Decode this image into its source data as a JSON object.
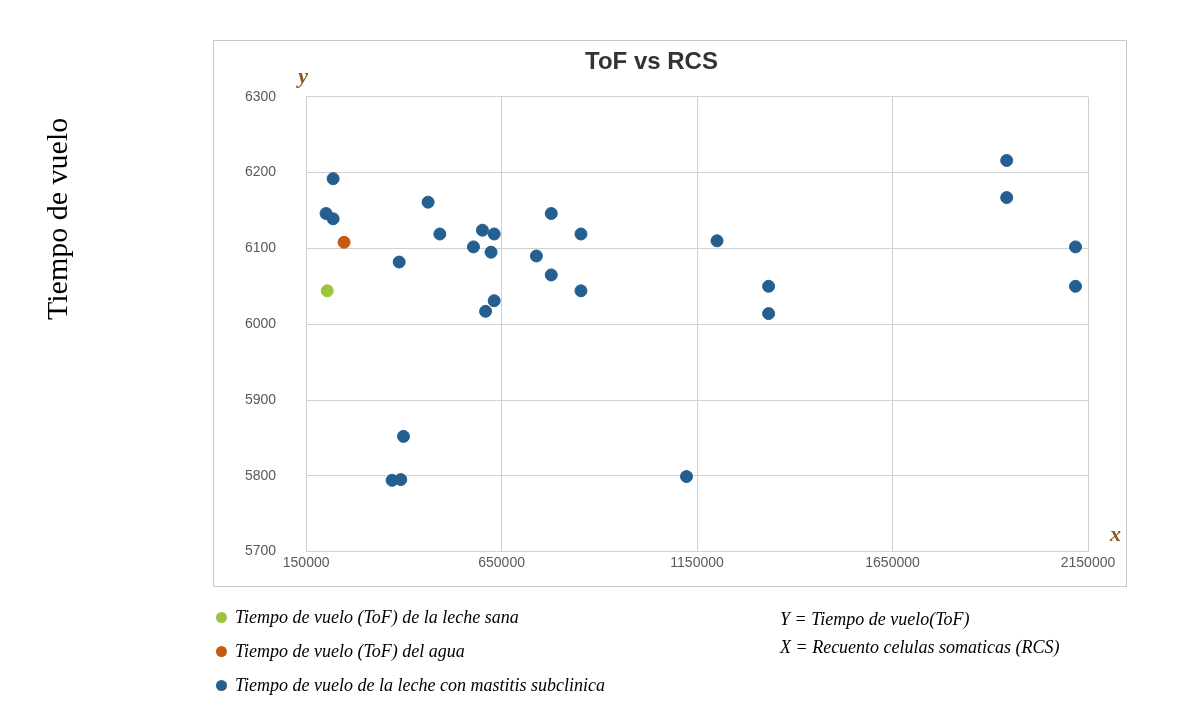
{
  "chart_data": {
    "type": "scatter",
    "title": "ToF vs RCS",
    "xlabel": "x",
    "ylabel": "y",
    "xlim": [
      150000,
      2150000
    ],
    "xticks": [
      150000,
      650000,
      1150000,
      1650000,
      2150000
    ],
    "ylim": [
      5700,
      6300
    ],
    "yticks": [
      5700,
      5800,
      5900,
      6000,
      6100,
      6200,
      6300
    ],
    "grid": true,
    "marker": "circle",
    "legend": "bottom left",
    "series": [
      {
        "name": "Tiempo de vuelo (ToF) de la leche sana",
        "color": "#9bc53d",
        "x": [
          204000
        ],
        "values": [
          6044
        ]
      },
      {
        "name": "Tiempo de vuelo (ToF) del agua",
        "color": "#c55a11",
        "x": [
          247000
        ],
        "values": [
          6108
        ]
      },
      {
        "name": "Tiempo de vuelo de la leche con mastitis subclinica",
        "color": "#255e91",
        "x": [
          219000,
          201000,
          219000,
          388000,
          462000,
          492000,
          578000,
          601000,
          631000,
          623000,
          631000,
          609000,
          739000,
          777000,
          777000,
          853000,
          853000,
          399000,
          370000,
          392000,
          1123000,
          1201000,
          1333000,
          1333000,
          1942000,
          1942000,
          2118000,
          2118000
        ],
        "values": [
          6192,
          6146,
          6139,
          6082,
          6161,
          6119,
          6102,
          6124,
          6119,
          6095,
          6031,
          6017,
          6090,
          6146,
          6065,
          6119,
          6044,
          5852,
          5794,
          5795,
          5799,
          6110,
          6050,
          6014,
          6216,
          6167,
          6102,
          6050
        ]
      }
    ],
    "annotations": [
      "Tiempo de vuelo",
      "Y = Tiempo de vuelo(ToF)",
      "X = Recuento celulas somaticas (RCS)"
    ]
  }
}
